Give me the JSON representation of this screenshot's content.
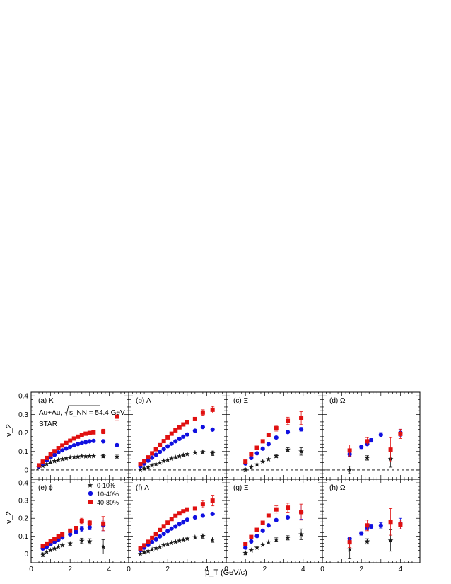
{
  "figure": {
    "xaxis_title": "p_T (GeV/c)",
    "yaxis_title": "v_2",
    "collision_label": "Au+Au,",
    "energy_label": "s_NN = 54.4 GeV",
    "experiment_label": "STAR"
  },
  "legend": {
    "location": "panel-e top-right",
    "entries": [
      {
        "label": "0-10%",
        "marker": "star",
        "color": "#1a1a1a"
      },
      {
        "label": "10-40%",
        "marker": "circle",
        "color": "#1010e0"
      },
      {
        "label": "40-80%",
        "marker": "square",
        "color": "#e01010"
      }
    ]
  },
  "chart_data": {
    "type": "scatter",
    "xlabel": "p_T (GeV/c)",
    "ylabel": "v_2",
    "xlim": [
      0,
      5
    ],
    "ylim": [
      -0.05,
      0.42
    ],
    "xticks": [
      "0",
      "2",
      "4"
    ],
    "yticks": [
      "0",
      "0.1",
      "0.2",
      "0.3",
      "0.4"
    ],
    "reference_line": 0,
    "panels": [
      {
        "id": "a",
        "label": "(a) K",
        "series": [
          {
            "name": "0-10%",
            "x": [
              0.4,
              0.6,
              0.8,
              1.0,
              1.2,
              1.4,
              1.6,
              1.8,
              2.0,
              2.2,
              2.4,
              2.6,
              2.8,
              3.0,
              3.2,
              3.7,
              4.4
            ],
            "y": [
              0.012,
              0.022,
              0.032,
              0.041,
              0.048,
              0.054,
              0.059,
              0.063,
              0.067,
              0.07,
              0.072,
              0.074,
              0.074,
              0.075,
              0.075,
              0.074,
              0.072
            ],
            "err": [
              0,
              0,
              0,
              0,
              0,
              0,
              0,
              0,
              0,
              0,
              0,
              0,
              0,
              0,
              0,
              0.008,
              0.012
            ]
          },
          {
            "name": "10-40%",
            "x": [
              0.4,
              0.6,
              0.8,
              1.0,
              1.2,
              1.4,
              1.6,
              1.8,
              2.0,
              2.2,
              2.4,
              2.6,
              2.8,
              3.0,
              3.2,
              3.7,
              4.4
            ],
            "y": [
              0.02,
              0.035,
              0.052,
              0.068,
              0.082,
              0.095,
              0.106,
              0.116,
              0.125,
              0.133,
              0.14,
              0.146,
              0.151,
              0.155,
              0.157,
              0.155,
              0.134
            ],
            "err": [
              0,
              0,
              0,
              0,
              0,
              0,
              0,
              0,
              0,
              0,
              0,
              0,
              0,
              0,
              0,
              0,
              0
            ]
          },
          {
            "name": "40-80%",
            "x": [
              0.4,
              0.6,
              0.8,
              1.0,
              1.2,
              1.4,
              1.6,
              1.8,
              2.0,
              2.2,
              2.4,
              2.6,
              2.8,
              3.0,
              3.2,
              3.7,
              4.4
            ],
            "y": [
              0.025,
              0.045,
              0.065,
              0.085,
              0.102,
              0.118,
              0.132,
              0.146,
              0.158,
              0.17,
              0.18,
              0.189,
              0.196,
              0.2,
              0.203,
              0.208,
              0.288
            ],
            "err": [
              0,
              0,
              0,
              0,
              0,
              0,
              0,
              0,
              0,
              0,
              0,
              0,
              0,
              0,
              0,
              0.012,
              0.02
            ]
          }
        ]
      },
      {
        "id": "b",
        "label": "(b) Λ",
        "series": [
          {
            "name": "0-10%",
            "x": [
              0.6,
              0.8,
              1.0,
              1.2,
              1.4,
              1.6,
              1.8,
              2.0,
              2.2,
              2.4,
              2.6,
              2.8,
              3.0,
              3.4,
              3.8,
              4.3
            ],
            "y": [
              0.0,
              0.008,
              0.016,
              0.024,
              0.032,
              0.04,
              0.048,
              0.055,
              0.062,
              0.068,
              0.074,
              0.08,
              0.086,
              0.093,
              0.097,
              0.09
            ],
            "err": [
              0,
              0,
              0,
              0,
              0,
              0,
              0,
              0,
              0,
              0,
              0,
              0,
              0,
              0,
              0.01,
              0.012
            ]
          },
          {
            "name": "10-40%",
            "x": [
              0.6,
              0.8,
              1.0,
              1.2,
              1.4,
              1.6,
              1.8,
              2.0,
              2.2,
              2.4,
              2.6,
              2.8,
              3.0,
              3.4,
              3.8,
              4.3
            ],
            "y": [
              0.02,
              0.035,
              0.05,
              0.066,
              0.082,
              0.098,
              0.113,
              0.128,
              0.142,
              0.155,
              0.168,
              0.18,
              0.192,
              0.212,
              0.232,
              0.218
            ],
            "err": [
              0,
              0,
              0,
              0,
              0,
              0,
              0,
              0,
              0,
              0,
              0,
              0,
              0,
              0,
              0,
              0
            ]
          },
          {
            "name": "40-80%",
            "x": [
              0.6,
              0.8,
              1.0,
              1.2,
              1.4,
              1.6,
              1.8,
              2.0,
              2.2,
              2.4,
              2.6,
              2.8,
              3.0,
              3.4,
              3.8,
              4.3
            ],
            "y": [
              0.03,
              0.048,
              0.068,
              0.09,
              0.112,
              0.134,
              0.156,
              0.176,
              0.196,
              0.214,
              0.23,
              0.246,
              0.258,
              0.275,
              0.31,
              0.325
            ],
            "err": [
              0,
              0,
              0,
              0,
              0,
              0,
              0,
              0,
              0,
              0,
              0,
              0,
              0,
              0,
              0.015,
              0.018
            ]
          }
        ]
      },
      {
        "id": "c",
        "label": "(c) Ξ",
        "series": [
          {
            "name": "0-10%",
            "x": [
              1.0,
              1.3,
              1.6,
              1.9,
              2.2,
              2.6,
              3.2,
              3.9
            ],
            "y": [
              0.0,
              0.015,
              0.03,
              0.045,
              0.058,
              0.075,
              0.11,
              0.1
            ],
            "err": [
              0.008,
              0,
              0,
              0,
              0,
              0.008,
              0.01,
              0.02
            ]
          },
          {
            "name": "10-40%",
            "x": [
              1.0,
              1.3,
              1.6,
              1.9,
              2.2,
              2.6,
              3.2,
              3.9
            ],
            "y": [
              0.035,
              0.065,
              0.09,
              0.115,
              0.14,
              0.175,
              0.205,
              0.22
            ],
            "err": [
              0,
              0,
              0,
              0,
              0,
              0,
              0,
              0.01
            ]
          },
          {
            "name": "40-80%",
            "x": [
              1.0,
              1.3,
              1.6,
              1.9,
              2.2,
              2.6,
              3.2,
              3.9
            ],
            "y": [
              0.045,
              0.085,
              0.12,
              0.155,
              0.19,
              0.225,
              0.265,
              0.28
            ],
            "err": [
              0,
              0,
              0,
              0,
              0,
              0.015,
              0.02,
              0.035
            ]
          }
        ]
      },
      {
        "id": "d",
        "label": "(d) Ω",
        "series": [
          {
            "name": "0-10%",
            "x": [
              1.4,
              2.3,
              3.5
            ],
            "y": [
              0.0,
              0.065,
              0.06
            ],
            "err": [
              0.02,
              0.012,
              0.045
            ]
          },
          {
            "name": "10-40%",
            "x": [
              1.4,
              2.0,
              2.3,
              2.5,
              3.0,
              4.0
            ],
            "y": [
              0.085,
              0.125,
              0.14,
              0.16,
              0.19,
              0.2
            ],
            "err": [
              0.012,
              0.01,
              0,
              0.01,
              0.012,
              0.02
            ]
          },
          {
            "name": "40-80%",
            "x": [
              1.4,
              2.3,
              3.5,
              4.0
            ],
            "y": [
              0.105,
              0.155,
              0.11,
              0.195
            ],
            "err": [
              0.03,
              0.02,
              0.065,
              0.025
            ]
          }
        ]
      },
      {
        "id": "e",
        "label": "(e) ϕ",
        "series": [
          {
            "name": "0-10%",
            "x": [
              0.6,
              0.8,
              1.0,
              1.2,
              1.4,
              1.6,
              2.0,
              2.6,
              3.0,
              3.7
            ],
            "y": [
              -0.005,
              0.012,
              0.02,
              0.03,
              0.04,
              0.048,
              0.058,
              0.073,
              0.07,
              0.04
            ],
            "err": [
              0.01,
              0,
              0,
              0,
              0,
              0,
              0.01,
              0.015,
              0.015,
              0.04
            ]
          },
          {
            "name": "10-40%",
            "x": [
              0.6,
              0.8,
              1.0,
              1.2,
              1.4,
              1.6,
              2.0,
              2.3,
              2.6,
              3.0,
              3.7
            ],
            "y": [
              0.03,
              0.04,
              0.055,
              0.068,
              0.08,
              0.092,
              0.11,
              0.125,
              0.14,
              0.15,
              0.16
            ],
            "err": [
              0,
              0,
              0,
              0,
              0,
              0,
              0,
              0.01,
              0.015,
              0.015,
              0.03
            ]
          },
          {
            "name": "40-80%",
            "x": [
              0.6,
              0.8,
              1.0,
              1.2,
              1.4,
              1.6,
              2.0,
              2.3,
              2.6,
              3.0,
              3.7
            ],
            "y": [
              0.045,
              0.058,
              0.072,
              0.085,
              0.098,
              0.11,
              0.13,
              0.145,
              0.185,
              0.175,
              0.17
            ],
            "err": [
              0,
              0,
              0,
              0,
              0,
              0,
              0,
              0.01,
              0.015,
              0.015,
              0.04
            ]
          }
        ]
      },
      {
        "id": "f",
        "label": "(f) Λ",
        "series": [
          {
            "name": "0-10%",
            "x": [
              0.6,
              0.8,
              1.0,
              1.2,
              1.4,
              1.6,
              1.8,
              2.0,
              2.2,
              2.4,
              2.6,
              2.8,
              3.0,
              3.4,
              3.8,
              4.3
            ],
            "y": [
              0.0,
              0.008,
              0.016,
              0.024,
              0.032,
              0.04,
              0.048,
              0.055,
              0.062,
              0.068,
              0.074,
              0.08,
              0.086,
              0.093,
              0.1,
              0.08
            ],
            "err": [
              0,
              0,
              0,
              0,
              0,
              0,
              0,
              0,
              0,
              0,
              0,
              0,
              0,
              0,
              0.012,
              0.015
            ]
          },
          {
            "name": "10-40%",
            "x": [
              0.6,
              0.8,
              1.0,
              1.2,
              1.4,
              1.6,
              1.8,
              2.0,
              2.2,
              2.4,
              2.6,
              2.8,
              3.0,
              3.4,
              3.8,
              4.3
            ],
            "y": [
              0.02,
              0.035,
              0.05,
              0.066,
              0.082,
              0.098,
              0.113,
              0.128,
              0.142,
              0.155,
              0.168,
              0.18,
              0.192,
              0.205,
              0.215,
              0.225
            ],
            "err": [
              0,
              0,
              0,
              0,
              0,
              0,
              0,
              0,
              0,
              0,
              0,
              0,
              0,
              0,
              0,
              0
            ]
          },
          {
            "name": "40-80%",
            "x": [
              0.6,
              0.8,
              1.0,
              1.2,
              1.4,
              1.6,
              1.8,
              2.0,
              2.2,
              2.4,
              2.6,
              2.8,
              3.0,
              3.4,
              3.8,
              4.3
            ],
            "y": [
              0.03,
              0.048,
              0.068,
              0.09,
              0.112,
              0.134,
              0.156,
              0.176,
              0.196,
              0.214,
              0.228,
              0.24,
              0.25,
              0.255,
              0.28,
              0.3
            ],
            "err": [
              0,
              0,
              0,
              0,
              0,
              0,
              0,
              0,
              0,
              0,
              0,
              0,
              0,
              0,
              0.02,
              0.03
            ]
          }
        ]
      },
      {
        "id": "g",
        "label": "(g) Ξ",
        "series": [
          {
            "name": "0-10%",
            "x": [
              1.0,
              1.3,
              1.6,
              1.9,
              2.2,
              2.6,
              3.2,
              3.9
            ],
            "y": [
              0.005,
              0.02,
              0.035,
              0.05,
              0.065,
              0.08,
              0.09,
              0.11
            ],
            "err": [
              0.01,
              0,
              0,
              0,
              0,
              0.01,
              0.012,
              0.03
            ]
          },
          {
            "name": "10-40%",
            "x": [
              1.0,
              1.3,
              1.6,
              1.9,
              2.2,
              2.6,
              3.2,
              3.9
            ],
            "y": [
              0.035,
              0.07,
              0.1,
              0.13,
              0.16,
              0.19,
              0.205,
              0.235
            ],
            "err": [
              0,
              0,
              0,
              0,
              0,
              0,
              0,
              0.04
            ]
          },
          {
            "name": "40-80%",
            "x": [
              1.0,
              1.3,
              1.6,
              1.9,
              2.2,
              2.6,
              3.2,
              3.9
            ],
            "y": [
              0.055,
              0.095,
              0.135,
              0.175,
              0.215,
              0.25,
              0.26,
              0.235
            ],
            "err": [
              0,
              0,
              0,
              0,
              0,
              0.02,
              0.025,
              0.045
            ]
          }
        ]
      },
      {
        "id": "h",
        "label": "(h) Ω",
        "series": [
          {
            "name": "0-10%",
            "x": [
              1.4,
              2.3,
              3.5
            ],
            "y": [
              0.025,
              0.07,
              0.075
            ],
            "err": [
              0.05,
              0.015,
              0.06
            ]
          },
          {
            "name": "10-40%",
            "x": [
              1.4,
              2.0,
              2.3,
              2.5,
              3.0,
              4.0
            ],
            "y": [
              0.085,
              0.115,
              0.15,
              0.155,
              0.16,
              0.17
            ],
            "err": [
              0.01,
              0.01,
              0.015,
              0.012,
              0.015,
              0.03
            ]
          },
          {
            "name": "40-80%",
            "x": [
              1.4,
              2.3,
              3.5,
              4.0
            ],
            "y": [
              0.065,
              0.16,
              0.18,
              0.165
            ],
            "err": [
              0.03,
              0.03,
              0.075,
              0.025
            ]
          }
        ]
      }
    ]
  }
}
